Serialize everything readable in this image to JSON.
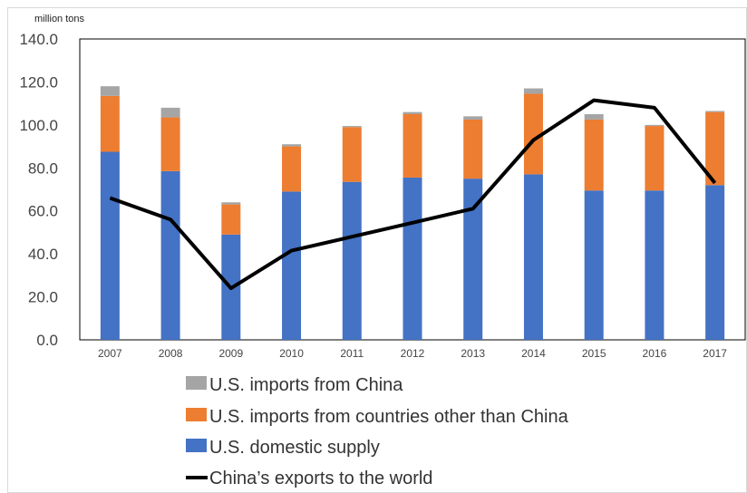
{
  "chart_data": {
    "type": "bar",
    "stacked": true,
    "unit_label": "million tons",
    "categories": [
      "2007",
      "2008",
      "2009",
      "2010",
      "2011",
      "2012",
      "2013",
      "2014",
      "2015",
      "2016",
      "2017"
    ],
    "ylim": [
      0,
      140
    ],
    "yticks": [
      "0.0",
      "20.0",
      "40.0",
      "60.0",
      "80.0",
      "100.0",
      "120.0",
      "140.0"
    ],
    "grid": false,
    "legend_position": "bottom",
    "series": [
      {
        "name": "U.S. domestic supply",
        "kind": "bar",
        "color": "#4472c4",
        "values": [
          87.5,
          78.5,
          49.0,
          69.0,
          73.5,
          75.5,
          75.0,
          77.0,
          69.5,
          69.5,
          72.0
        ]
      },
      {
        "name": "U.S. imports from countries other than China",
        "kind": "bar",
        "color": "#ed7d31",
        "values": [
          26.0,
          25.0,
          14.0,
          21.0,
          25.5,
          29.5,
          27.5,
          37.5,
          33.0,
          30.0,
          34.0
        ]
      },
      {
        "name": "U.S. imports from China",
        "kind": "bar",
        "color": "#a5a5a5",
        "values": [
          4.5,
          4.5,
          1.0,
          1.0,
          0.5,
          1.0,
          1.5,
          2.5,
          2.5,
          0.5,
          0.5
        ]
      },
      {
        "name": "China’s exports to the world",
        "kind": "line",
        "color": "#000000",
        "values": [
          66.0,
          56.0,
          24.0,
          41.5,
          48.0,
          54.5,
          61.0,
          93.0,
          111.5,
          108.0,
          73.0
        ]
      }
    ],
    "legend_order": [
      "U.S. imports from China",
      "U.S. imports from countries other than China",
      "U.S. domestic supply",
      "China’s exports to the world"
    ]
  }
}
